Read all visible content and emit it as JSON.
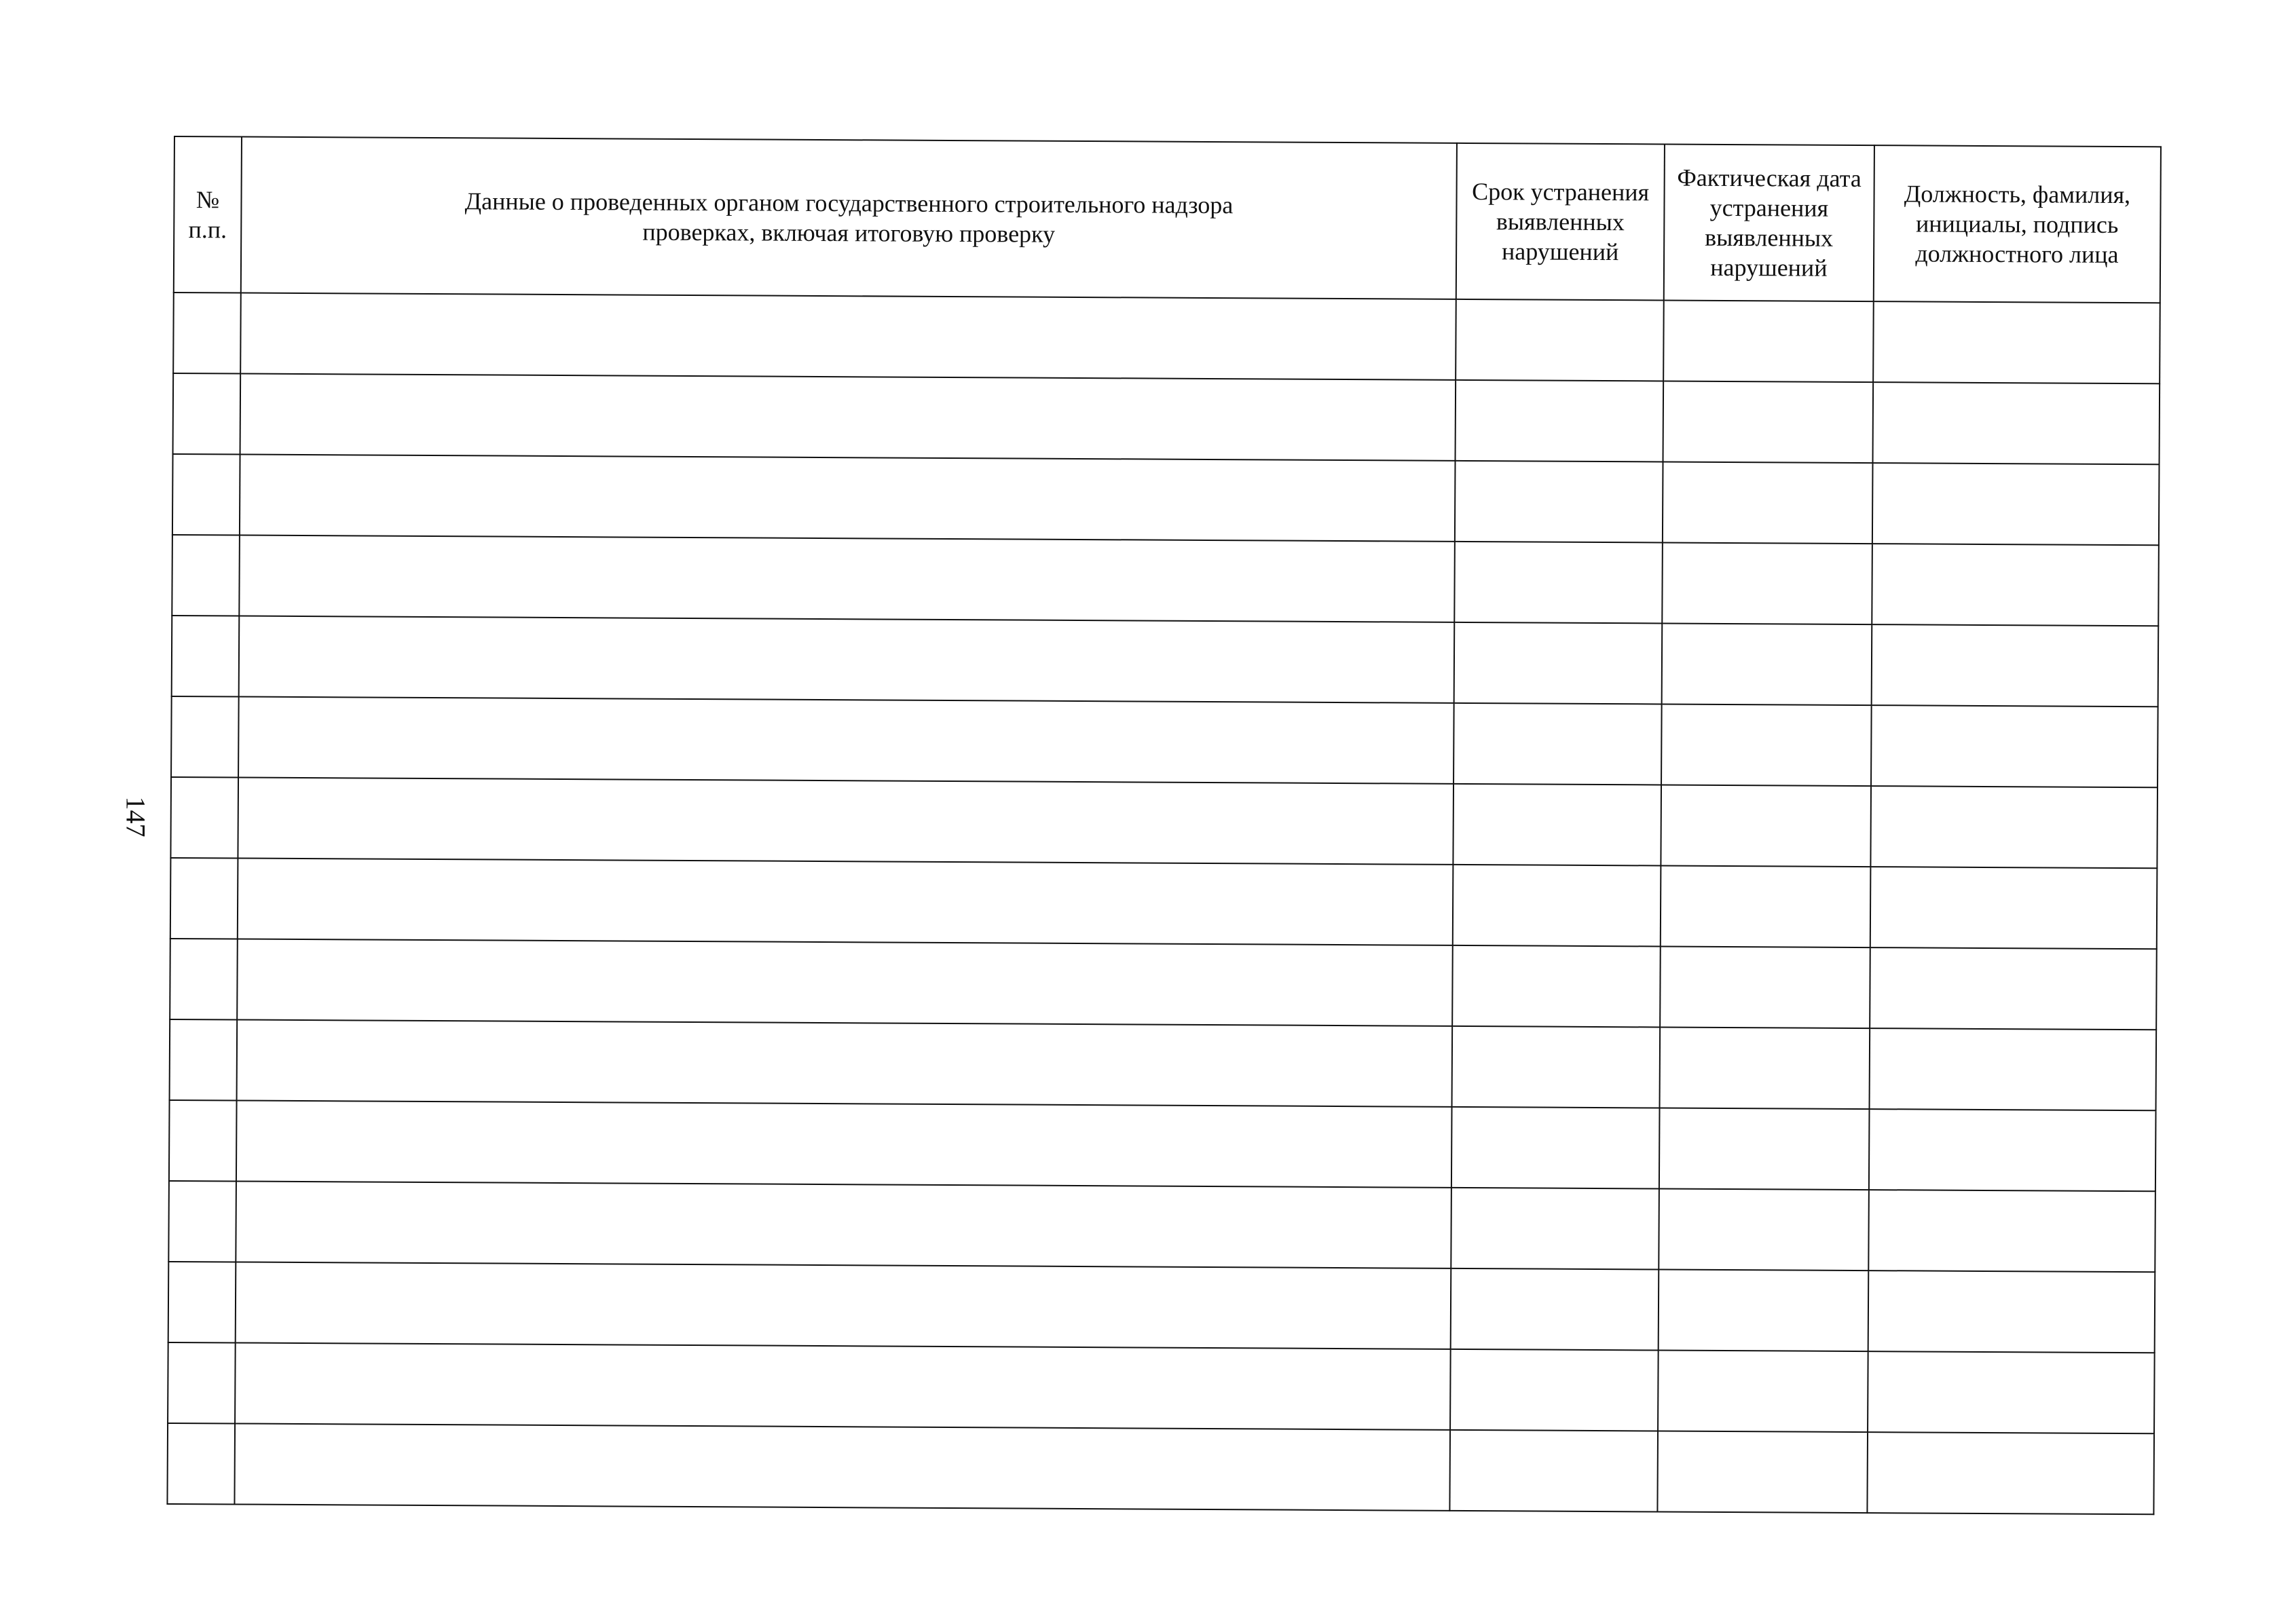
{
  "page_number": "147",
  "table": {
    "headers": [
      "№ п.п.",
      "Данные о проведенных органом государственного строительного надзора проверках, включая итоговую проверку",
      "Срок устранения выявленных нарушений",
      "Фактическая дата устранения выявленных нарушений",
      "Должность, фамилия, инициалы, подпись должностного лица"
    ],
    "empty_row_count": 15
  }
}
